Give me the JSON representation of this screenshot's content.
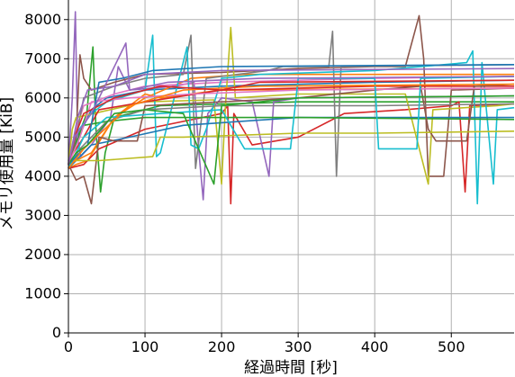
{
  "chart_data": {
    "type": "line",
    "xlabel": "経過時間 [秒]",
    "ylabel": "メモリ使用量 [KiB]",
    "xlim": [
      0,
      582
    ],
    "ylim": [
      0,
      8500
    ],
    "xticks": [
      0,
      100,
      200,
      300,
      400,
      500
    ],
    "yticks": [
      0,
      1000,
      2000,
      3000,
      4000,
      5000,
      6000,
      7000,
      8000
    ],
    "grid": true,
    "series": [
      {
        "color": "#1f77b4",
        "values": [
          [
            0,
            4300
          ],
          [
            8,
            4700
          ],
          [
            18,
            5200
          ],
          [
            30,
            5700
          ],
          [
            50,
            6000
          ],
          [
            100,
            6200
          ],
          [
            200,
            6300
          ],
          [
            400,
            6400
          ],
          [
            582,
            6450
          ]
        ]
      },
      {
        "color": "#ff7f0e",
        "values": [
          [
            0,
            4200
          ],
          [
            10,
            4300
          ],
          [
            25,
            4400
          ],
          [
            60,
            5500
          ],
          [
            100,
            6000
          ],
          [
            160,
            6500
          ],
          [
            230,
            6600
          ],
          [
            582,
            6600
          ]
        ]
      },
      {
        "color": "#2ca02c",
        "values": [
          [
            0,
            4400
          ],
          [
            12,
            5000
          ],
          [
            24,
            5600
          ],
          [
            32,
            7300
          ],
          [
            36,
            5200
          ],
          [
            42,
            3600
          ],
          [
            48,
            4600
          ],
          [
            60,
            5500
          ],
          [
            120,
            5800
          ],
          [
            300,
            5900
          ],
          [
            582,
            5900
          ]
        ]
      },
      {
        "color": "#d62728",
        "values": [
          [
            0,
            4200
          ],
          [
            20,
            4300
          ],
          [
            40,
            4700
          ],
          [
            100,
            5200
          ],
          [
            200,
            5600
          ],
          [
            208,
            5800
          ],
          [
            212,
            3300
          ],
          [
            216,
            5600
          ],
          [
            240,
            4800
          ],
          [
            300,
            5000
          ],
          [
            360,
            5600
          ],
          [
            440,
            5700
          ],
          [
            500,
            5800
          ],
          [
            510,
            5900
          ],
          [
            518,
            3600
          ],
          [
            524,
            5800
          ],
          [
            582,
            5850
          ]
        ]
      },
      {
        "color": "#9467bd",
        "values": [
          [
            0,
            4300
          ],
          [
            5,
            6000
          ],
          [
            9,
            8200
          ],
          [
            12,
            5000
          ],
          [
            16,
            4500
          ],
          [
            30,
            4800
          ],
          [
            55,
            5500
          ],
          [
            65,
            6800
          ],
          [
            80,
            6200
          ],
          [
            140,
            6300
          ],
          [
            164,
            6400
          ],
          [
            170,
            4700
          ],
          [
            176,
            3400
          ],
          [
            182,
            5600
          ],
          [
            200,
            6000
          ],
          [
            240,
            5900
          ],
          [
            262,
            4000
          ],
          [
            268,
            5900
          ],
          [
            300,
            6000
          ],
          [
            582,
            6050
          ]
        ]
      },
      {
        "color": "#8c564b",
        "values": [
          [
            0,
            4200
          ],
          [
            10,
            5000
          ],
          [
            15,
            7100
          ],
          [
            20,
            6500
          ],
          [
            30,
            6200
          ],
          [
            60,
            6400
          ],
          [
            100,
            6600
          ],
          [
            200,
            6650
          ],
          [
            300,
            6750
          ],
          [
            400,
            6800
          ],
          [
            440,
            6800
          ],
          [
            458,
            8100
          ],
          [
            464,
            7000
          ],
          [
            470,
            4000
          ],
          [
            490,
            4000
          ],
          [
            500,
            6200
          ],
          [
            582,
            6250
          ]
        ]
      },
      {
        "color": "#e377c2",
        "values": [
          [
            0,
            4200
          ],
          [
            10,
            5200
          ],
          [
            20,
            5800
          ],
          [
            60,
            6100
          ],
          [
            100,
            6300
          ],
          [
            200,
            6400
          ],
          [
            400,
            6500
          ],
          [
            582,
            6550
          ]
        ]
      },
      {
        "color": "#7f7f7f",
        "values": [
          [
            0,
            4400
          ],
          [
            10,
            5000
          ],
          [
            20,
            6000
          ],
          [
            60,
            6300
          ],
          [
            100,
            6500
          ],
          [
            150,
            6600
          ],
          [
            160,
            7600
          ],
          [
            166,
            4200
          ],
          [
            180,
            6500
          ],
          [
            260,
            6700
          ],
          [
            280,
            6800
          ],
          [
            340,
            6800
          ],
          [
            345,
            7700
          ],
          [
            350,
            4000
          ],
          [
            356,
            6800
          ],
          [
            582,
            6850
          ]
        ]
      },
      {
        "color": "#bcbd22",
        "values": [
          [
            0,
            4300
          ],
          [
            5,
            5200
          ],
          [
            10,
            5500
          ],
          [
            100,
            5900
          ],
          [
            190,
            5950
          ],
          [
            200,
            3800
          ],
          [
            205,
            5800
          ],
          [
            212,
            7800
          ],
          [
            218,
            6000
          ],
          [
            300,
            6100
          ],
          [
            400,
            6100
          ],
          [
            440,
            6100
          ],
          [
            470,
            3800
          ],
          [
            476,
            5700
          ],
          [
            560,
            5800
          ],
          [
            582,
            5850
          ]
        ]
      },
      {
        "color": "#17becf",
        "values": [
          [
            0,
            4300
          ],
          [
            10,
            5100
          ],
          [
            30,
            5600
          ],
          [
            50,
            5900
          ],
          [
            100,
            6200
          ],
          [
            110,
            7600
          ],
          [
            115,
            4500
          ],
          [
            120,
            4600
          ],
          [
            155,
            7300
          ],
          [
            160,
            4800
          ],
          [
            170,
            4700
          ],
          [
            180,
            5200
          ],
          [
            200,
            6500
          ],
          [
            250,
            6600
          ],
          [
            400,
            6700
          ],
          [
            520,
            6900
          ],
          [
            528,
            7200
          ],
          [
            534,
            3300
          ],
          [
            540,
            6900
          ],
          [
            555,
            3800
          ],
          [
            560,
            5700
          ],
          [
            582,
            5750
          ]
        ]
      },
      {
        "color": "#1f77b4",
        "values": [
          [
            0,
            4200
          ],
          [
            15,
            4500
          ],
          [
            30,
            4800
          ],
          [
            80,
            5000
          ],
          [
            150,
            5300
          ],
          [
            300,
            5500
          ],
          [
            582,
            5500
          ]
        ]
      },
      {
        "color": "#ff7f0e",
        "values": [
          [
            0,
            4300
          ],
          [
            30,
            4600
          ],
          [
            60,
            5500
          ],
          [
            100,
            6100
          ],
          [
            120,
            6000
          ],
          [
            200,
            6200
          ],
          [
            582,
            6250
          ]
        ]
      },
      {
        "color": "#2ca02c",
        "values": [
          [
            0,
            4300
          ],
          [
            10,
            4800
          ],
          [
            20,
            5300
          ],
          [
            50,
            5400
          ],
          [
            100,
            5500
          ],
          [
            300,
            5500
          ],
          [
            582,
            5450
          ]
        ]
      },
      {
        "color": "#d62728",
        "values": [
          [
            0,
            4400
          ],
          [
            20,
            5000
          ],
          [
            40,
            5700
          ],
          [
            100,
            5900
          ],
          [
            200,
            6200
          ],
          [
            400,
            6300
          ],
          [
            582,
            6300
          ]
        ]
      },
      {
        "color": "#9467bd",
        "values": [
          [
            0,
            4300
          ],
          [
            12,
            5500
          ],
          [
            25,
            6200
          ],
          [
            60,
            6300
          ],
          [
            100,
            6600
          ],
          [
            200,
            6700
          ],
          [
            582,
            6750
          ]
        ]
      },
      {
        "color": "#8c564b",
        "values": [
          [
            0,
            4300
          ],
          [
            10,
            3900
          ],
          [
            20,
            4000
          ],
          [
            30,
            3300
          ],
          [
            40,
            5000
          ],
          [
            60,
            4900
          ],
          [
            90,
            4900
          ],
          [
            100,
            5800
          ],
          [
            200,
            5900
          ],
          [
            300,
            6000
          ],
          [
            400,
            6200
          ],
          [
            460,
            6300
          ],
          [
            470,
            5200
          ],
          [
            480,
            4900
          ],
          [
            520,
            4900
          ],
          [
            530,
            6300
          ],
          [
            582,
            6350
          ]
        ]
      },
      {
        "color": "#e377c2",
        "values": [
          [
            0,
            4300
          ],
          [
            15,
            5000
          ],
          [
            30,
            5900
          ],
          [
            80,
            6000
          ],
          [
            160,
            6100
          ],
          [
            300,
            6200
          ],
          [
            582,
            6250
          ]
        ]
      },
      {
        "color": "#7f7f7f",
        "values": [
          [
            0,
            4200
          ],
          [
            15,
            4700
          ],
          [
            30,
            5000
          ],
          [
            50,
            5400
          ],
          [
            100,
            5700
          ],
          [
            200,
            5800
          ],
          [
            400,
            5800
          ],
          [
            582,
            5850
          ]
        ]
      },
      {
        "color": "#bcbd22",
        "values": [
          [
            0,
            4400
          ],
          [
            10,
            4400
          ],
          [
            40,
            4400
          ],
          [
            110,
            4500
          ],
          [
            120,
            5000
          ],
          [
            150,
            5000
          ],
          [
            300,
            5100
          ],
          [
            400,
            5100
          ],
          [
            582,
            5150
          ]
        ]
      },
      {
        "color": "#17becf",
        "values": [
          [
            0,
            4200
          ],
          [
            20,
            5000
          ],
          [
            50,
            5500
          ],
          [
            120,
            5600
          ],
          [
            200,
            5700
          ],
          [
            230,
            4700
          ],
          [
            290,
            4700
          ],
          [
            300,
            6500
          ],
          [
            400,
            6500
          ],
          [
            405,
            4700
          ],
          [
            455,
            4700
          ],
          [
            460,
            6500
          ],
          [
            582,
            6550
          ]
        ]
      },
      {
        "color": "#1f77b4",
        "values": [
          [
            0,
            4300
          ],
          [
            25,
            4800
          ],
          [
            40,
            6400
          ],
          [
            70,
            6500
          ],
          [
            110,
            6700
          ],
          [
            200,
            6800
          ],
          [
            582,
            6850
          ]
        ]
      },
      {
        "color": "#ff7f0e",
        "values": [
          [
            0,
            4200
          ],
          [
            20,
            4700
          ],
          [
            80,
            5800
          ],
          [
            150,
            6200
          ],
          [
            250,
            6300
          ],
          [
            582,
            6350
          ]
        ]
      },
      {
        "color": "#2ca02c",
        "values": [
          [
            0,
            4300
          ],
          [
            10,
            4600
          ],
          [
            25,
            4800
          ],
          [
            60,
            5600
          ],
          [
            100,
            5700
          ],
          [
            150,
            5600
          ],
          [
            190,
            3800
          ],
          [
            200,
            5800
          ],
          [
            300,
            6000
          ],
          [
            582,
            6050
          ]
        ]
      },
      {
        "color": "#d62728",
        "values": [
          [
            0,
            4300
          ],
          [
            10,
            5100
          ],
          [
            20,
            5600
          ],
          [
            60,
            6000
          ],
          [
            120,
            6300
          ],
          [
            200,
            6200
          ],
          [
            250,
            6400
          ],
          [
            582,
            6450
          ]
        ]
      },
      {
        "color": "#9467bd",
        "values": [
          [
            0,
            4300
          ],
          [
            8,
            5000
          ],
          [
            30,
            5600
          ],
          [
            75,
            7400
          ],
          [
            80,
            6200
          ],
          [
            130,
            6400
          ],
          [
            250,
            6500
          ],
          [
            582,
            6550
          ]
        ]
      }
    ]
  }
}
